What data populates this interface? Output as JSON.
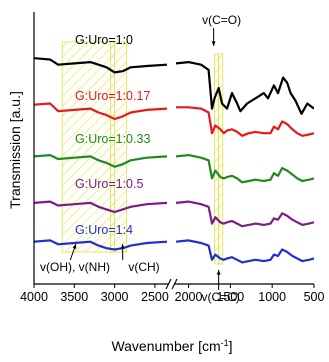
{
  "chart_data": {
    "type": "line",
    "xlabel": "Wavenumber [cm",
    "xlabel_sup": "-1",
    "xlabel_close": "]",
    "ylabel": "Transmission [a.u.]",
    "x_tick_labels": [
      "4000",
      "3500",
      "3000",
      "2500",
      "2000",
      "1500",
      "1000",
      "500"
    ],
    "x_ticks_left": [
      4000,
      3500,
      3000,
      2500
    ],
    "x_ticks_right": [
      2000,
      1500,
      1000,
      500
    ],
    "xlim_left": [
      4000,
      2350
    ],
    "xlim_right": [
      2150,
      500
    ],
    "x_axis_reversed": true,
    "axis_break": true,
    "y_ticks": false,
    "legend": "none",
    "series": [
      {
        "name": "G:Uro=1:0",
        "color": "#000000",
        "left": [
          [
            4000,
            0.835
          ],
          [
            3800,
            0.83
          ],
          [
            3700,
            0.81
          ],
          [
            3500,
            0.815
          ],
          [
            3300,
            0.82
          ],
          [
            3200,
            0.81
          ],
          [
            3100,
            0.8
          ],
          [
            3000,
            0.78
          ],
          [
            2900,
            0.785
          ],
          [
            2800,
            0.8
          ],
          [
            2600,
            0.805
          ],
          [
            2350,
            0.81
          ]
        ],
        "right": [
          [
            2150,
            0.815
          ],
          [
            2000,
            0.82
          ],
          [
            1850,
            0.81
          ],
          [
            1760,
            0.79
          ],
          [
            1720,
            0.64
          ],
          [
            1690,
            0.68
          ],
          [
            1640,
            0.72
          ],
          [
            1600,
            0.66
          ],
          [
            1540,
            0.64
          ],
          [
            1480,
            0.7
          ],
          [
            1420,
            0.66
          ],
          [
            1380,
            0.63
          ],
          [
            1300,
            0.66
          ],
          [
            1200,
            0.68
          ],
          [
            1100,
            0.7
          ],
          [
            1050,
            0.68
          ],
          [
            980,
            0.73
          ],
          [
            930,
            0.7
          ],
          [
            870,
            0.76
          ],
          [
            820,
            0.74
          ],
          [
            780,
            0.7
          ],
          [
            720,
            0.67
          ],
          [
            650,
            0.62
          ],
          [
            580,
            0.66
          ],
          [
            500,
            0.64
          ]
        ]
      },
      {
        "name": "G:Uro=1:0.17",
        "color": "#e8191b",
        "left": [
          [
            4000,
            0.655
          ],
          [
            3800,
            0.66
          ],
          [
            3700,
            0.63
          ],
          [
            3500,
            0.635
          ],
          [
            3300,
            0.64
          ],
          [
            3200,
            0.625
          ],
          [
            3100,
            0.615
          ],
          [
            3000,
            0.6
          ],
          [
            2900,
            0.61
          ],
          [
            2800,
            0.625
          ],
          [
            2600,
            0.635
          ],
          [
            2350,
            0.64
          ]
        ],
        "right": [
          [
            2150,
            0.645
          ],
          [
            2000,
            0.645
          ],
          [
            1850,
            0.64
          ],
          [
            1760,
            0.625
          ],
          [
            1720,
            0.545
          ],
          [
            1680,
            0.575
          ],
          [
            1620,
            0.56
          ],
          [
            1580,
            0.545
          ],
          [
            1540,
            0.555
          ],
          [
            1480,
            0.56
          ],
          [
            1420,
            0.55
          ],
          [
            1360,
            0.535
          ],
          [
            1280,
            0.545
          ],
          [
            1200,
            0.55
          ],
          [
            1100,
            0.545
          ],
          [
            1020,
            0.545
          ],
          [
            980,
            0.57
          ],
          [
            930,
            0.56
          ],
          [
            880,
            0.59
          ],
          [
            820,
            0.58
          ],
          [
            760,
            0.56
          ],
          [
            700,
            0.545
          ],
          [
            640,
            0.535
          ],
          [
            560,
            0.54
          ],
          [
            500,
            0.545
          ]
        ]
      },
      {
        "name": "G:Uro=1:0.33",
        "color": "#1f8a1f",
        "left": [
          [
            4000,
            0.455
          ],
          [
            3800,
            0.46
          ],
          [
            3700,
            0.445
          ],
          [
            3500,
            0.45
          ],
          [
            3300,
            0.455
          ],
          [
            3200,
            0.44
          ],
          [
            3100,
            0.43
          ],
          [
            3000,
            0.415
          ],
          [
            2900,
            0.425
          ],
          [
            2800,
            0.44
          ],
          [
            2600,
            0.45
          ],
          [
            2350,
            0.455
          ]
        ],
        "right": [
          [
            2150,
            0.455
          ],
          [
            2000,
            0.46
          ],
          [
            1850,
            0.45
          ],
          [
            1760,
            0.44
          ],
          [
            1720,
            0.37
          ],
          [
            1680,
            0.4
          ],
          [
            1620,
            0.375
          ],
          [
            1580,
            0.37
          ],
          [
            1540,
            0.375
          ],
          [
            1480,
            0.38
          ],
          [
            1420,
            0.37
          ],
          [
            1360,
            0.355
          ],
          [
            1280,
            0.36
          ],
          [
            1200,
            0.365
          ],
          [
            1100,
            0.36
          ],
          [
            1020,
            0.365
          ],
          [
            980,
            0.39
          ],
          [
            930,
            0.38
          ],
          [
            880,
            0.41
          ],
          [
            820,
            0.4
          ],
          [
            760,
            0.385
          ],
          [
            700,
            0.37
          ],
          [
            640,
            0.36
          ],
          [
            560,
            0.365
          ],
          [
            500,
            0.37
          ]
        ]
      },
      {
        "name": "G:Uro=1:0.5",
        "color": "#7b1c8a",
        "left": [
          [
            4000,
            0.275
          ],
          [
            3800,
            0.28
          ],
          [
            3700,
            0.265
          ],
          [
            3500,
            0.27
          ],
          [
            3300,
            0.275
          ],
          [
            3200,
            0.26
          ],
          [
            3100,
            0.25
          ],
          [
            3000,
            0.24
          ],
          [
            2900,
            0.25
          ],
          [
            2800,
            0.26
          ],
          [
            2600,
            0.27
          ],
          [
            2350,
            0.275
          ]
        ],
        "right": [
          [
            2150,
            0.275
          ],
          [
            2000,
            0.28
          ],
          [
            1850,
            0.27
          ],
          [
            1760,
            0.26
          ],
          [
            1720,
            0.195
          ],
          [
            1680,
            0.22
          ],
          [
            1620,
            0.2
          ],
          [
            1580,
            0.195
          ],
          [
            1540,
            0.2
          ],
          [
            1480,
            0.205
          ],
          [
            1420,
            0.195
          ],
          [
            1360,
            0.185
          ],
          [
            1280,
            0.19
          ],
          [
            1200,
            0.195
          ],
          [
            1100,
            0.19
          ],
          [
            1020,
            0.195
          ],
          [
            980,
            0.215
          ],
          [
            930,
            0.21
          ],
          [
            880,
            0.235
          ],
          [
            820,
            0.225
          ],
          [
            760,
            0.21
          ],
          [
            700,
            0.2
          ],
          [
            640,
            0.19
          ],
          [
            560,
            0.195
          ],
          [
            500,
            0.2
          ]
        ]
      },
      {
        "name": "G:Uro=1:4",
        "color": "#1f2fd0",
        "left": [
          [
            4000,
            0.125
          ],
          [
            3800,
            0.13
          ],
          [
            3700,
            0.115
          ],
          [
            3500,
            0.12
          ],
          [
            3300,
            0.125
          ],
          [
            3200,
            0.11
          ],
          [
            3100,
            0.1
          ],
          [
            3000,
            0.095
          ],
          [
            2900,
            0.1
          ],
          [
            2800,
            0.11
          ],
          [
            2600,
            0.12
          ],
          [
            2350,
            0.125
          ]
        ],
        "right": [
          [
            2150,
            0.125
          ],
          [
            2000,
            0.13
          ],
          [
            1850,
            0.12
          ],
          [
            1760,
            0.11
          ],
          [
            1720,
            0.055
          ],
          [
            1680,
            0.075
          ],
          [
            1620,
            0.06
          ],
          [
            1580,
            0.055
          ],
          [
            1540,
            0.06
          ],
          [
            1480,
            0.065
          ],
          [
            1420,
            0.055
          ],
          [
            1360,
            0.045
          ],
          [
            1280,
            0.05
          ],
          [
            1200,
            0.055
          ],
          [
            1100,
            0.05
          ],
          [
            1020,
            0.055
          ],
          [
            980,
            0.075
          ],
          [
            930,
            0.07
          ],
          [
            880,
            0.095
          ],
          [
            820,
            0.085
          ],
          [
            760,
            0.07
          ],
          [
            700,
            0.06
          ],
          [
            640,
            0.05
          ],
          [
            560,
            0.055
          ],
          [
            500,
            0.06
          ]
        ]
      }
    ],
    "highlight_regions": [
      {
        "x": [
          3650,
          3000
        ]
      },
      {
        "x": [
          3050,
          2850
        ]
      },
      {
        "x": [
          1690,
          1640
        ]
      },
      {
        "x": [
          1640,
          1590
        ]
      }
    ],
    "annotations": [
      {
        "text": "v(C=O)",
        "x": 1700
      },
      {
        "text": "v(OH), v(NH)",
        "x": 3450
      },
      {
        "text": "v(CH)",
        "x": 2900
      },
      {
        "text": "v(C=C)",
        "x": 1640
      }
    ]
  }
}
